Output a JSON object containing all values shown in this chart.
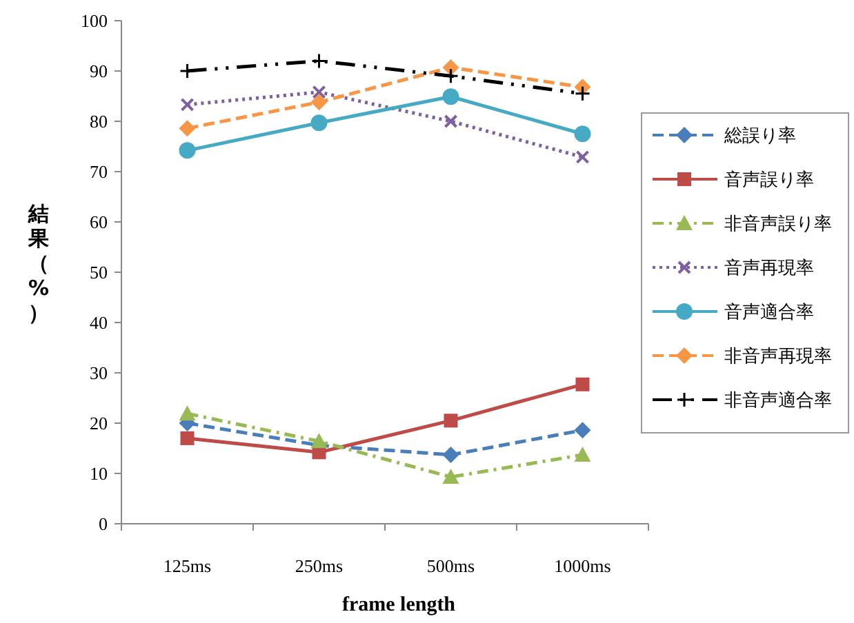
{
  "chart_data": {
    "type": "line",
    "xlabel": "frame length",
    "ylabel": "結果（%）",
    "categories": [
      "125ms",
      "250ms",
      "500ms",
      "1000ms"
    ],
    "ylim": [
      0,
      100
    ],
    "yticks": [
      0,
      10,
      20,
      30,
      40,
      50,
      60,
      70,
      80,
      90,
      100
    ],
    "grid": false,
    "legend": "right",
    "series": [
      {
        "name": "総誤り率",
        "color": "#4a7ebb",
        "marker": "diamond",
        "line_style": "dashed",
        "values": [
          20,
          15.6,
          13.7,
          18.6
        ]
      },
      {
        "name": "音声誤り率",
        "color": "#be4b48",
        "marker": "square",
        "line_style": "solid",
        "values": [
          17,
          14.2,
          20.5,
          27.7
        ]
      },
      {
        "name": "非音声誤り率",
        "color": "#98b954",
        "marker": "triangle",
        "line_style": "dashdot",
        "values": [
          21.9,
          16.4,
          9.3,
          13.7
        ]
      },
      {
        "name": "音声再現率",
        "color": "#7d60a0",
        "marker": "x",
        "line_style": "dotted",
        "values": [
          83.3,
          85.8,
          80,
          72.9
        ]
      },
      {
        "name": "音声適合率",
        "color": "#46aac5",
        "marker": "circle",
        "line_style": "solid",
        "values": [
          74.2,
          79.7,
          84.9,
          77.5
        ]
      },
      {
        "name": "非音声再現率",
        "color": "#f79646",
        "marker": "diamond",
        "line_style": "dashed",
        "values": [
          78.6,
          83.8,
          90.7,
          86.8
        ]
      },
      {
        "name": "非音声適合率",
        "color": "#000000",
        "marker": "cross",
        "line_style": "dashdotdot",
        "values": [
          90,
          92,
          89,
          85.5
        ]
      }
    ]
  }
}
